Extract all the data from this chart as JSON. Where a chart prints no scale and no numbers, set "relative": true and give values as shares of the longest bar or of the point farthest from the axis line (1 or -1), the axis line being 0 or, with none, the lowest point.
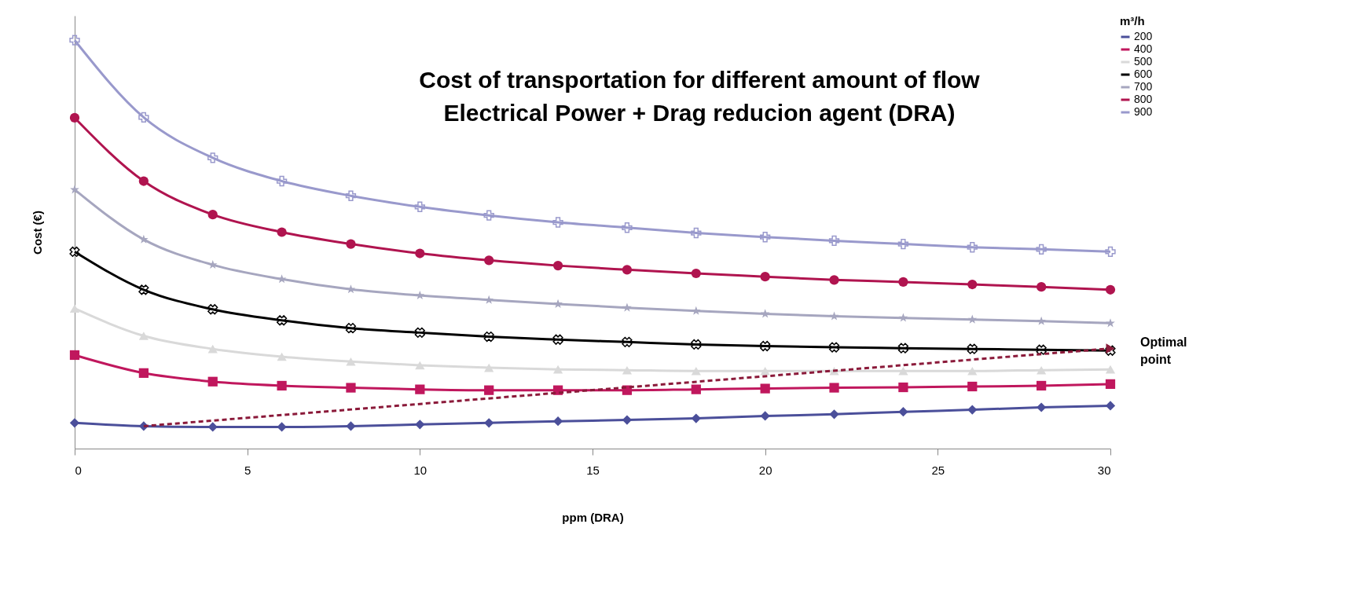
{
  "chart_data": {
    "type": "line",
    "title": "Cost of transportation for different amount of flow\nElectrical Power + Drag reducion agent (DRA)",
    "xlabel": "ppm (DRA)",
    "ylabel": "Cost (€)",
    "legend_title": "m³/h",
    "relative": true,
    "xlim": [
      0,
      30
    ],
    "xticks": [
      0,
      5,
      10,
      15,
      20,
      25,
      30
    ],
    "grid": false,
    "legend": "right",
    "x": [
      0,
      2,
      4,
      6,
      8,
      10,
      12,
      14,
      16,
      18,
      20,
      22,
      24,
      26,
      28,
      30
    ],
    "series": [
      {
        "name": "200",
        "color": "#4b4f9a",
        "marker": "diamond",
        "values": [
          0.063,
          0.055,
          0.053,
          0.053,
          0.055,
          0.059,
          0.063,
          0.067,
          0.07,
          0.074,
          0.08,
          0.084,
          0.09,
          0.095,
          0.101,
          0.105
        ]
      },
      {
        "name": "400",
        "color": "#c0175d",
        "marker": "square",
        "values": [
          0.229,
          0.185,
          0.164,
          0.154,
          0.149,
          0.145,
          0.143,
          0.143,
          0.143,
          0.145,
          0.147,
          0.149,
          0.15,
          0.152,
          0.154,
          0.158
        ]
      },
      {
        "name": "500",
        "color": "#d9d9d9",
        "marker": "triangle",
        "values": [
          0.343,
          0.276,
          0.244,
          0.225,
          0.213,
          0.204,
          0.198,
          0.194,
          0.192,
          0.19,
          0.19,
          0.19,
          0.19,
          0.19,
          0.192,
          0.194
        ]
      },
      {
        "name": "600",
        "color": "#000000",
        "marker": "cross",
        "values": [
          0.482,
          0.389,
          0.341,
          0.314,
          0.295,
          0.284,
          0.274,
          0.267,
          0.261,
          0.255,
          0.251,
          0.248,
          0.246,
          0.244,
          0.242,
          0.24
        ]
      },
      {
        "name": "700",
        "color": "#a6a6bf",
        "marker": "star",
        "values": [
          0.634,
          0.512,
          0.45,
          0.415,
          0.39,
          0.375,
          0.364,
          0.354,
          0.345,
          0.337,
          0.33,
          0.324,
          0.32,
          0.316,
          0.312,
          0.307
        ]
      },
      {
        "name": "800",
        "color": "#b0144f",
        "marker": "circle",
        "values": [
          0.81,
          0.655,
          0.573,
          0.53,
          0.501,
          0.478,
          0.461,
          0.448,
          0.438,
          0.429,
          0.421,
          0.413,
          0.408,
          0.402,
          0.396,
          0.389
        ]
      },
      {
        "name": "900",
        "color": "#9999cc",
        "marker": "cross",
        "values": [
          1.0,
          0.811,
          0.712,
          0.655,
          0.619,
          0.592,
          0.571,
          0.554,
          0.541,
          0.528,
          0.518,
          0.509,
          0.501,
          0.493,
          0.488,
          0.482
        ]
      },
      {
        "color": "#8b1a3a",
        "x": [
          2,
          30
        ],
        "marker": "triangle",
        "line_style": "dashed",
        "values": [
          0.055,
          0.245
        ]
      }
    ],
    "annotations": [
      {
        "text": "Optimal\npoint",
        "x": 30,
        "y": 0.245
      }
    ]
  }
}
